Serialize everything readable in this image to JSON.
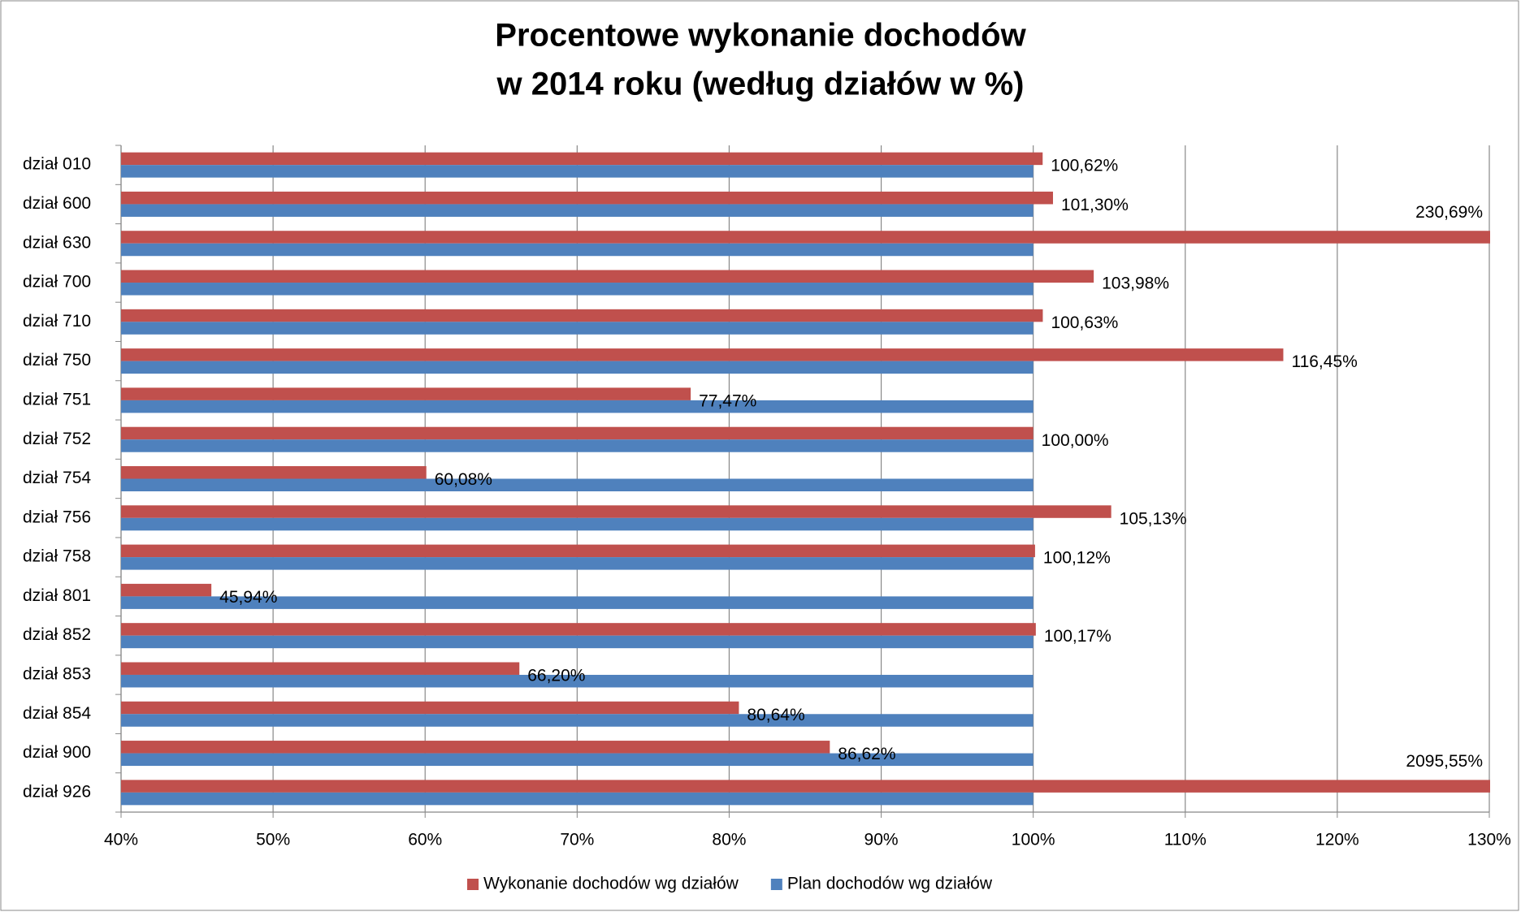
{
  "chart_data": {
    "type": "hbar",
    "title": "Procentowe wykonanie dochodów",
    "subtitle": "w 2014 roku (według działów w %)",
    "categories": [
      "dział 010",
      "dział 600",
      "dział 630",
      "dział 700",
      "dział 710",
      "dział 750",
      "dział 751",
      "dział 752",
      "dział 754",
      "dział 756",
      "dział 758",
      "dział 801",
      "dział 852",
      "dział 853",
      "dział 854",
      "dział 900",
      "dział 926"
    ],
    "series": [
      {
        "name": "Wykonanie dochodów wg działów",
        "color": "#c0504d",
        "values": [
          100.62,
          101.3,
          230.69,
          103.98,
          100.63,
          116.45,
          77.47,
          100.0,
          60.08,
          105.13,
          100.12,
          45.94,
          100.17,
          66.2,
          80.64,
          86.62,
          2095.55
        ],
        "value_labels": [
          "100,62%",
          "101,30%",
          "230,69%",
          "103,98%",
          "100,63%",
          "116,45%",
          "77,47%",
          "100,00%",
          "60,08%",
          "105,13%",
          "100,12%",
          "45,94%",
          "100,17%",
          "66,20%",
          "80,64%",
          "86,62%",
          "2095,55%"
        ]
      },
      {
        "name": "Plan dochodów wg działów",
        "color": "#4f81bd",
        "values": [
          100,
          100,
          100,
          100,
          100,
          100,
          100,
          100,
          100,
          100,
          100,
          100,
          100,
          100,
          100,
          100,
          100
        ]
      }
    ],
    "xlim": [
      40,
      130
    ],
    "xticks": [
      {
        "value": 40,
        "label": "40%"
      },
      {
        "value": 50,
        "label": "50%"
      },
      {
        "value": 60,
        "label": "60%"
      },
      {
        "value": 70,
        "label": "70%"
      },
      {
        "value": 80,
        "label": "80%"
      },
      {
        "value": 90,
        "label": "90%"
      },
      {
        "value": 100,
        "label": "100%"
      },
      {
        "value": 110,
        "label": "110%"
      },
      {
        "value": 120,
        "label": "120%"
      },
      {
        "value": 130,
        "label": "130%"
      }
    ],
    "grid": true,
    "legend": "bottom"
  }
}
